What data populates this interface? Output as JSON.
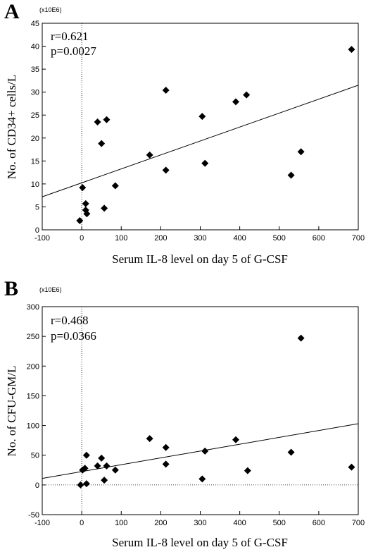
{
  "chart_data": [
    {
      "type": "scatter",
      "panel": "A",
      "multiplier": "(x10E6)",
      "xlabel": "Serum IL-8 level on day 5 of G-CSF",
      "ylabel": "No. of CD34+ cells/L",
      "xlim": [
        -100,
        700
      ],
      "ylim": [
        0,
        45
      ],
      "xticks": [
        -100,
        0,
        100,
        200,
        300,
        400,
        500,
        600,
        700
      ],
      "yticks": [
        0,
        5,
        10,
        15,
        20,
        25,
        30,
        35,
        40,
        45
      ],
      "stats": [
        "r=0.621",
        "p=0.0027"
      ],
      "grid": false,
      "points": [
        {
          "x": -5,
          "y": 2
        },
        {
          "x": 2,
          "y": 9.2
        },
        {
          "x": 10,
          "y": 5.7
        },
        {
          "x": 10,
          "y": 4.3
        },
        {
          "x": 13,
          "y": 3.5
        },
        {
          "x": 40,
          "y": 23.5
        },
        {
          "x": 50,
          "y": 18.8
        },
        {
          "x": 57,
          "y": 4.7
        },
        {
          "x": 63,
          "y": 24
        },
        {
          "x": 85,
          "y": 9.6
        },
        {
          "x": 172,
          "y": 16.3
        },
        {
          "x": 213,
          "y": 30.4
        },
        {
          "x": 213,
          "y": 13
        },
        {
          "x": 305,
          "y": 24.7
        },
        {
          "x": 312,
          "y": 14.5
        },
        {
          "x": 390,
          "y": 27.9
        },
        {
          "x": 417,
          "y": 29.4
        },
        {
          "x": 530,
          "y": 11.9
        },
        {
          "x": 555,
          "y": 17
        },
        {
          "x": 683,
          "y": 39.3
        }
      ],
      "fit_line": {
        "x": [
          -100,
          700
        ],
        "y": [
          7.2,
          31.5
        ]
      },
      "reference_lines": {
        "x": 0
      }
    },
    {
      "type": "scatter",
      "panel": "B",
      "multiplier": "(x10E6)",
      "xlabel": "Serum IL-8 level on day 5 of G-CSF",
      "ylabel": "No. of CFU-GM/L",
      "xlim": [
        -100,
        700
      ],
      "ylim": [
        -50,
        300
      ],
      "xticks": [
        -100,
        0,
        100,
        200,
        300,
        400,
        500,
        600,
        700
      ],
      "yticks": [
        -50,
        0,
        50,
        100,
        150,
        200,
        250,
        300
      ],
      "stats": [
        "r=0.468",
        "p=0.0366"
      ],
      "grid": false,
      "points": [
        {
          "x": -3,
          "y": 0
        },
        {
          "x": 2,
          "y": 25
        },
        {
          "x": 8,
          "y": 28
        },
        {
          "x": 12,
          "y": 50
        },
        {
          "x": 12,
          "y": 2
        },
        {
          "x": 40,
          "y": 32
        },
        {
          "x": 50,
          "y": 45
        },
        {
          "x": 57,
          "y": 8
        },
        {
          "x": 63,
          "y": 32
        },
        {
          "x": 85,
          "y": 25
        },
        {
          "x": 172,
          "y": 78
        },
        {
          "x": 213,
          "y": 63
        },
        {
          "x": 213,
          "y": 35
        },
        {
          "x": 305,
          "y": 10
        },
        {
          "x": 312,
          "y": 57
        },
        {
          "x": 390,
          "y": 76
        },
        {
          "x": 420,
          "y": 24
        },
        {
          "x": 530,
          "y": 55
        },
        {
          "x": 555,
          "y": 247
        },
        {
          "x": 683,
          "y": 30
        }
      ],
      "fit_line": {
        "x": [
          -100,
          700
        ],
        "y": [
          11,
          103
        ]
      },
      "reference_lines": {
        "x": 0,
        "y": 0
      }
    }
  ]
}
